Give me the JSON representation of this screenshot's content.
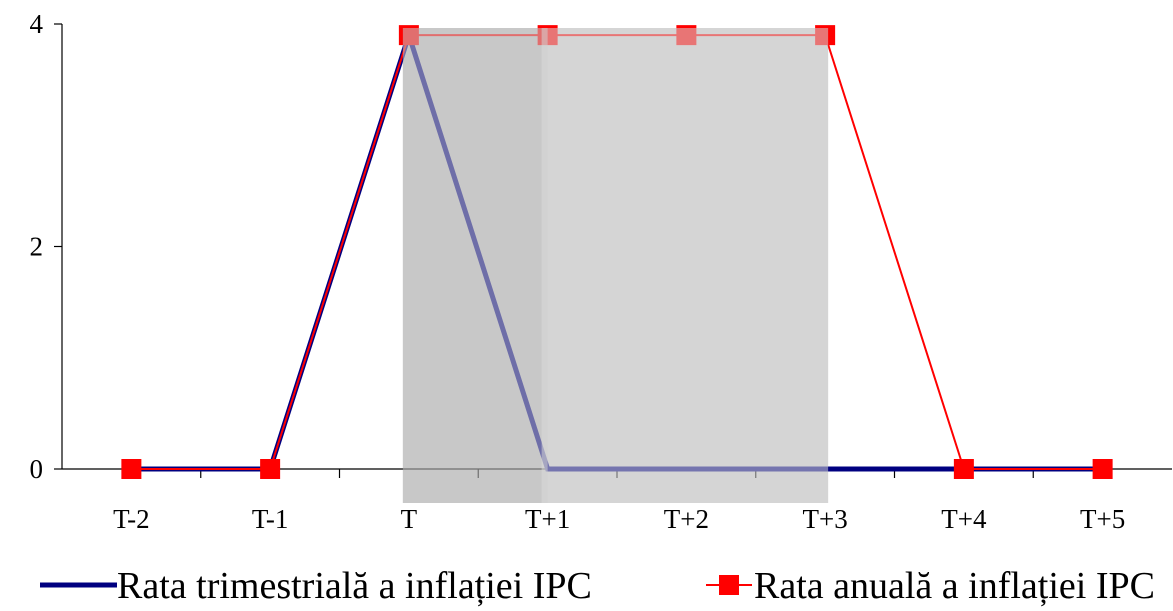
{
  "chart_data": {
    "type": "line",
    "categories": [
      "T-2",
      "T-1",
      "T",
      "T+1",
      "T+2",
      "T+3",
      "T+4",
      "T+5"
    ],
    "ylim": [
      0,
      4
    ],
    "yticks": [
      0,
      2,
      4
    ],
    "grid": false,
    "legend_position": "bottom",
    "series": [
      {
        "name": "Rata trimestrială a inflației IPC",
        "values": [
          0,
          0,
          3.9,
          0,
          0,
          0,
          0,
          0
        ],
        "color": "#000080",
        "marker": "none"
      },
      {
        "name": "Rata anuală a inflației IPC",
        "values": [
          0,
          0,
          3.9,
          3.9,
          3.9,
          3.9,
          0,
          0
        ],
        "color": "#ff0000",
        "marker": "square"
      }
    ],
    "shaded_regions": [
      {
        "from": "T",
        "to": "T+1",
        "color": "#c8c8c8"
      },
      {
        "from": "T+1",
        "to": "T+3",
        "color": "#d6d6d6"
      }
    ]
  }
}
